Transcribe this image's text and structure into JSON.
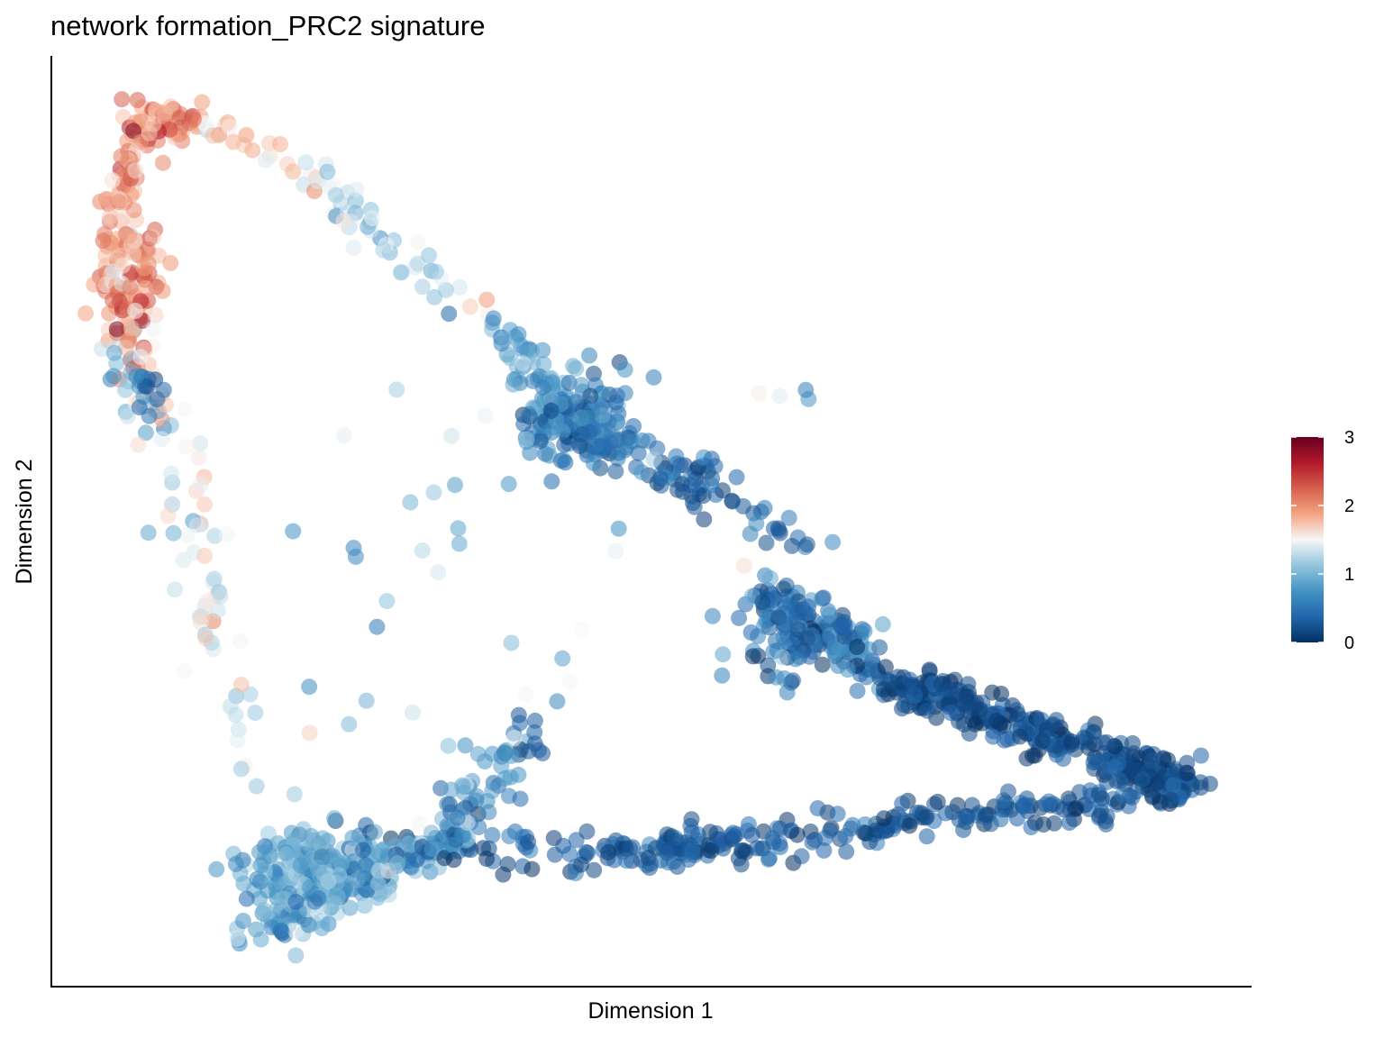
{
  "chart_data": {
    "type": "scatter",
    "title": "network formation_PRC2 signature",
    "xlabel": "Dimension 1",
    "ylabel": "Dimension 2",
    "xlim": [
      0,
      100
    ],
    "ylim": [
      0,
      100
    ],
    "x_ticks_shown": false,
    "y_ticks_shown": false,
    "grid": false,
    "point_opacity": 0.55,
    "colorbar": {
      "placement": "right",
      "range": [
        0,
        3
      ],
      "tick_values": [
        0,
        1,
        2,
        3
      ],
      "tick_labels": [
        "0",
        "1",
        "2",
        "3"
      ],
      "colormap": "RdBu (reversed)",
      "colors": [
        "#053061",
        "#2166ac",
        "#4393c3",
        "#92c5de",
        "#f7f7f7",
        "#f4a582",
        "#d6604d",
        "#b2182b",
        "#67001f"
      ]
    },
    "point_groups": [
      {
        "region": "top-left arc",
        "color_value": 1.95,
        "x_range": [
          4,
          14
        ],
        "y_range": [
          52,
          95
        ]
      },
      {
        "region": "upper diagonal arm",
        "color_value": 1.1,
        "x_range": [
          14,
          45
        ],
        "y_range": [
          60,
          92
        ]
      },
      {
        "region": "mid right arm",
        "color_value": 0.3,
        "x_range": [
          40,
          95
        ],
        "y_range": [
          22,
          62
        ]
      },
      {
        "region": "lower edge",
        "color_value": 0.35,
        "x_range": [
          15,
          95
        ],
        "y_range": [
          5,
          22
        ]
      },
      {
        "region": "bottom-left cluster",
        "color_value": 0.95,
        "x_range": [
          14,
          30
        ],
        "y_range": [
          4,
          18
        ]
      }
    ]
  }
}
